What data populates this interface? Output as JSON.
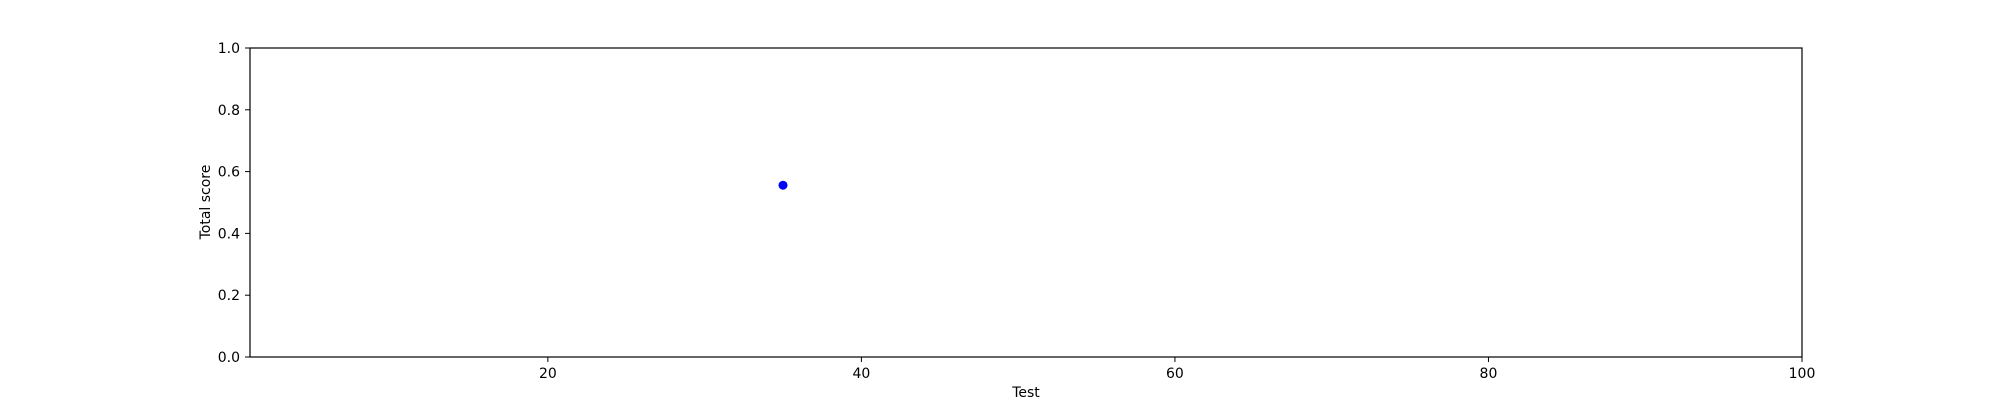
{
  "chart_data": {
    "type": "scatter",
    "xlabel": "Test",
    "ylabel": "Total score",
    "xlim": [
      1,
      100
    ],
    "ylim": [
      0.0,
      1.0
    ],
    "xticks": [
      20,
      40,
      60,
      80,
      100
    ],
    "yticks": [
      0.0,
      0.2,
      0.4,
      0.6,
      0.8,
      1.0
    ],
    "xtick_labels": [
      "20",
      "40",
      "60",
      "80",
      "100"
    ],
    "ytick_labels": [
      "0.0",
      "0.2",
      "0.4",
      "0.6",
      "0.8",
      "1.0"
    ],
    "grid": false,
    "series": [
      {
        "color": "#0000ff",
        "marker": "circle",
        "points": [
          {
            "x": 35,
            "y": 0.556
          }
        ]
      }
    ]
  }
}
